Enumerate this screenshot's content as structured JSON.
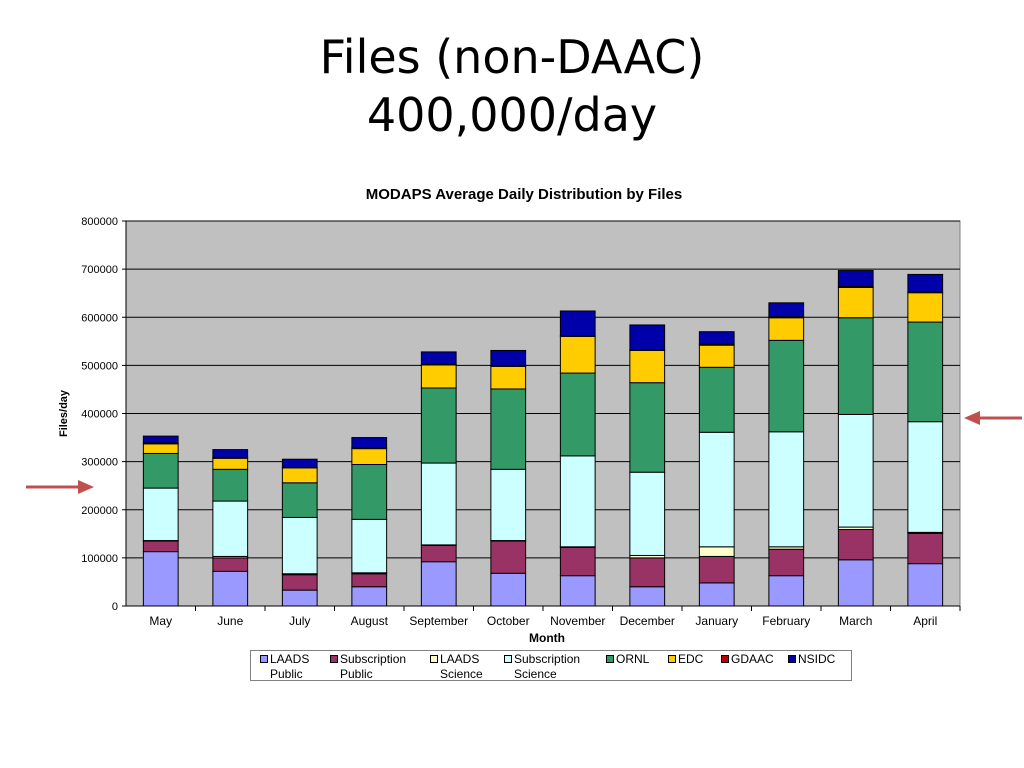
{
  "slide": {
    "title_line1": "Files (non-DAAC)",
    "title_line2": "400,000/day"
  },
  "colors": {
    "plot_background": "#c0c0c0",
    "gridline": "#000000",
    "arrow": "#c0504d"
  },
  "chart_data": {
    "type": "bar",
    "stacked": true,
    "title": "MODAPS Average Daily Distribution by Files",
    "xlabel": "Month",
    "ylabel": "Files/day",
    "ylim": [
      0,
      800000
    ],
    "yticks": [
      "0",
      "100000",
      "200000",
      "300000",
      "400000",
      "500000",
      "600000",
      "700000",
      "800000"
    ],
    "grid": true,
    "legend_position": "bottom",
    "categories": [
      "May",
      "June",
      "July",
      "August",
      "September",
      "October",
      "November",
      "December",
      "January",
      "February",
      "March",
      "April"
    ],
    "series": [
      {
        "name": "LAADS Public",
        "legend_label": "LAADS\nPublic",
        "color": "#9999ff",
        "values": [
          113000,
          72000,
          33000,
          40000,
          92000,
          68000,
          63000,
          40000,
          48000,
          63000,
          96000,
          88000
        ]
      },
      {
        "name": "Subscription Public",
        "legend_label": "Subscription\nPublic",
        "color": "#993366",
        "values": [
          22000,
          28000,
          32000,
          27000,
          34000,
          67000,
          59000,
          60000,
          55000,
          55000,
          63000,
          63000
        ]
      },
      {
        "name": "LAADS Science",
        "legend_label": "LAADS\nScience",
        "color": "#ffffcc",
        "values": [
          1000,
          3000,
          2000,
          2000,
          1000,
          1000,
          1000,
          5000,
          20000,
          5000,
          5000,
          2000
        ]
      },
      {
        "name": "Subscription Science",
        "legend_label": "Subscription\nScience",
        "color": "#ccffff",
        "values": [
          109000,
          115000,
          117000,
          111000,
          170000,
          148000,
          189000,
          173000,
          238000,
          239000,
          234000,
          230000
        ]
      },
      {
        "name": "ORNL",
        "legend_label": "ORNL",
        "color": "#339966",
        "values": [
          72000,
          66000,
          72000,
          114000,
          156000,
          167000,
          172000,
          186000,
          135000,
          190000,
          201000,
          207000
        ]
      },
      {
        "name": "EDC",
        "legend_label": "EDC",
        "color": "#ffcc00",
        "values": [
          20000,
          23000,
          31000,
          33000,
          48000,
          47000,
          76000,
          67000,
          46000,
          47000,
          63000,
          61000
        ]
      },
      {
        "name": "GDAAC",
        "legend_label": "GDAAC",
        "color": "#c00000",
        "values": [
          2000,
          2000,
          1000,
          2000,
          2000,
          2000,
          2000,
          2000,
          2000,
          2000,
          2000,
          2000
        ]
      },
      {
        "name": "NSIDC",
        "legend_label": "NSIDC",
        "color": "#0000aa",
        "values": [
          14000,
          16000,
          17000,
          21000,
          25000,
          31000,
          51000,
          51000,
          26000,
          29000,
          33000,
          36000
        ]
      }
    ]
  }
}
